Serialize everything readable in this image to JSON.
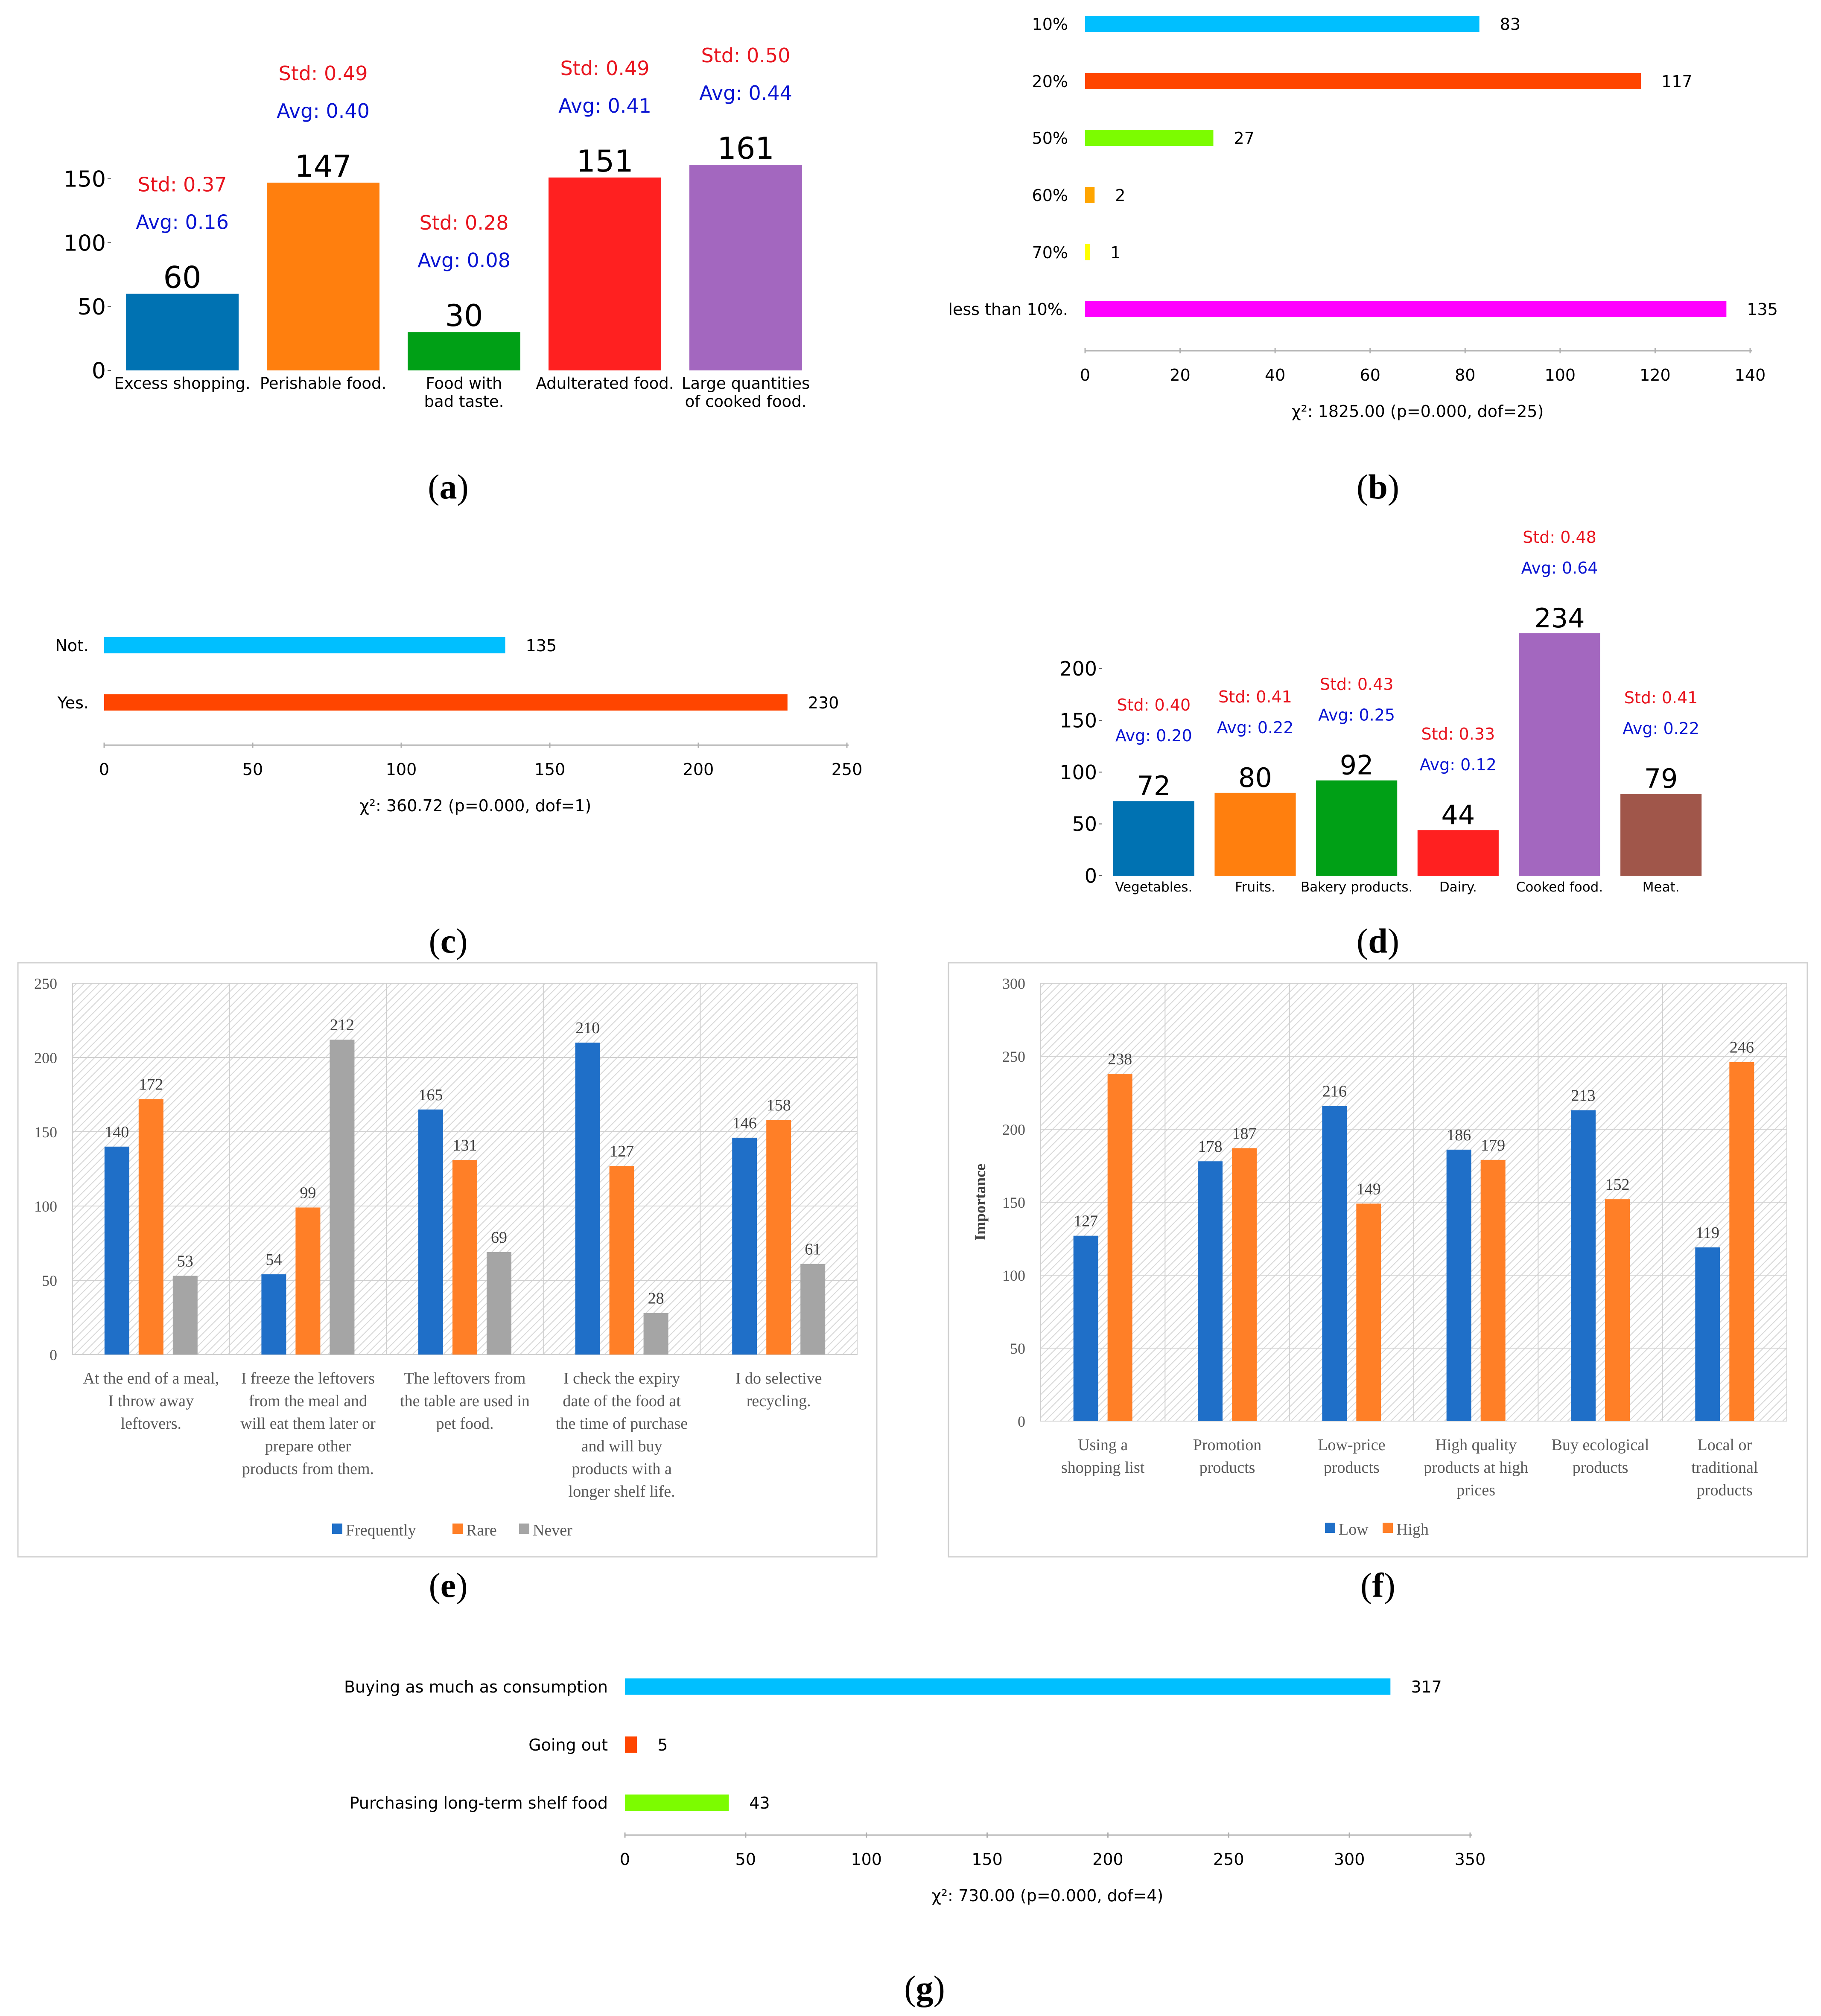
{
  "chart_data": [
    {
      "id": "a",
      "type": "bar",
      "panel_label": "(a)",
      "categories": [
        "Excess shopping.",
        "Perishable food.",
        "Food with bad taste.",
        "Adulterated food.",
        "Large quantities of cooked food."
      ],
      "category_lines": [
        [
          "Excess shopping."
        ],
        [
          "Perishable food."
        ],
        [
          "Food with",
          "bad taste."
        ],
        [
          "Adulterated food."
        ],
        [
          "Large quantities",
          "of cooked food."
        ]
      ],
      "values": [
        60,
        147,
        30,
        151,
        161
      ],
      "std_labels": [
        "Std: 0.37",
        "Std: 0.49",
        "Std: 0.28",
        "Std: 0.49",
        "Std: 0.50"
      ],
      "avg_labels": [
        "Avg: 0.16",
        "Avg: 0.40",
        "Avg: 0.08",
        "Avg: 0.41",
        "Avg: 0.44"
      ],
      "colors": [
        "#0072B2",
        "#FF7F0E",
        "#00A016",
        "#FF2020",
        "#A367BF"
      ],
      "yticks": [
        0,
        50,
        100,
        150
      ],
      "ylim": [
        0,
        161
      ]
    },
    {
      "id": "b",
      "type": "hbar",
      "panel_label": "(b)",
      "categories": [
        "10%",
        "20%",
        "50%",
        "60%",
        "70%",
        "less than 10%."
      ],
      "values": [
        83,
        117,
        27,
        2,
        1,
        135
      ],
      "colors": [
        "#00BFFF",
        "#FF4500",
        "#7CFC00",
        "#FFA500",
        "#FFFF00",
        "#FF00FF"
      ],
      "xticks": [
        0,
        20,
        40,
        60,
        80,
        100,
        120,
        140
      ],
      "xlim": [
        0,
        140
      ],
      "stat_label": "χ²: 1825.00 (p=0.000, dof=25)"
    },
    {
      "id": "c",
      "type": "hbar",
      "panel_label": "(c)",
      "categories": [
        "Not.",
        "Yes."
      ],
      "values": [
        135,
        230
      ],
      "colors": [
        "#00BFFF",
        "#FF4500"
      ],
      "xticks": [
        0,
        50,
        100,
        150,
        200,
        250
      ],
      "xlim": [
        0,
        250
      ],
      "stat_label": "χ²: 360.72 (p=0.000, dof=1)"
    },
    {
      "id": "d",
      "type": "bar",
      "panel_label": "(d)",
      "categories": [
        "Vegetables.",
        "Fruits.",
        "Bakery products.",
        "Dairy.",
        "Cooked food.",
        "Meat."
      ],
      "category_lines": [
        [
          "Vegetables."
        ],
        [
          "Fruits."
        ],
        [
          "Bakery products."
        ],
        [
          "Dairy."
        ],
        [
          "Cooked food."
        ],
        [
          "Meat."
        ]
      ],
      "values": [
        72,
        80,
        92,
        44,
        234,
        79
      ],
      "std_labels": [
        "Std: 0.40",
        "Std: 0.41",
        "Std: 0.43",
        "Std: 0.33",
        "Std: 0.48",
        "Std: 0.41"
      ],
      "avg_labels": [
        "Avg: 0.20",
        "Avg: 0.22",
        "Avg: 0.25",
        "Avg: 0.12",
        "Avg: 0.64",
        "Avg: 0.22"
      ],
      "colors": [
        "#0072B2",
        "#FF7F0E",
        "#00A016",
        "#FF2020",
        "#A367BF",
        "#A0564A"
      ],
      "yticks": [
        0,
        50,
        100,
        150,
        200
      ],
      "ylim": [
        0,
        234
      ]
    },
    {
      "id": "e",
      "type": "bar",
      "panel_label": "(e)",
      "categories": [
        "At the end of a meal, I throw away leftovers.",
        "I freeze the leftovers from the meal and will eat them later or prepare other products from them.",
        "The leftovers from the table are used in pet food.",
        "I check the expiry date of the food at the time of purchase and will buy products with a longer shelf life.",
        "I do selective recycling."
      ],
      "category_lines": [
        [
          "At the end of a meal,",
          "I throw away",
          "leftovers."
        ],
        [
          "I freeze the leftovers",
          "from the meal and",
          "will eat them later or",
          "prepare other",
          "products from them."
        ],
        [
          "The leftovers from",
          "the table are used in",
          "pet food."
        ],
        [
          "I check the expiry",
          "date of the food at",
          "the time of purchase",
          "and will buy",
          "products with a",
          "longer shelf life."
        ],
        [
          "I do selective",
          "recycling."
        ]
      ],
      "series": [
        {
          "name": "Frequently",
          "color": "#1F6FC8",
          "values": [
            140,
            54,
            165,
            210,
            146
          ]
        },
        {
          "name": "Rare",
          "color": "#FF7F27",
          "values": [
            172,
            99,
            131,
            127,
            158
          ]
        },
        {
          "name": "Never",
          "color": "#A5A5A5",
          "values": [
            53,
            212,
            69,
            28,
            61
          ]
        }
      ],
      "yticks": [
        0,
        50,
        100,
        150,
        200,
        250
      ],
      "ylim": [
        0,
        250
      ]
    },
    {
      "id": "f",
      "type": "bar",
      "panel_label": "(f)",
      "ylabel": "Importance",
      "categories": [
        "Using a shopping list",
        "Promotion products",
        "Low-price products",
        "High quality products at high prices",
        "Buy ecological products",
        "Local or traditional products"
      ],
      "category_lines": [
        [
          "Using a",
          "shopping list"
        ],
        [
          "Promotion",
          "products"
        ],
        [
          "Low-price",
          "products"
        ],
        [
          "High quality",
          "products at high",
          "prices"
        ],
        [
          "Buy ecological",
          "products"
        ],
        [
          "Local or",
          "traditional",
          "products"
        ]
      ],
      "series": [
        {
          "name": "Low",
          "color": "#1F6FC8",
          "values": [
            127,
            178,
            216,
            186,
            213,
            119
          ]
        },
        {
          "name": "High",
          "color": "#FF7F27",
          "values": [
            238,
            187,
            149,
            179,
            152,
            246
          ]
        }
      ],
      "yticks": [
        0,
        50,
        100,
        150,
        200,
        250,
        300
      ],
      "ylim": [
        0,
        300
      ]
    },
    {
      "id": "g",
      "type": "hbar",
      "panel_label": "(g)",
      "categories": [
        "Buying as much as consumption",
        "Going out",
        "Purchasing long-term shelf food"
      ],
      "values": [
        317,
        5,
        43
      ],
      "colors": [
        "#00BFFF",
        "#FF4500",
        "#7CFC00"
      ],
      "xticks": [
        0,
        50,
        100,
        150,
        200,
        250,
        300,
        350
      ],
      "xlim": [
        0,
        350
      ],
      "stat_label": "χ²: 730.00 (p=0.000, dof=4)"
    }
  ]
}
